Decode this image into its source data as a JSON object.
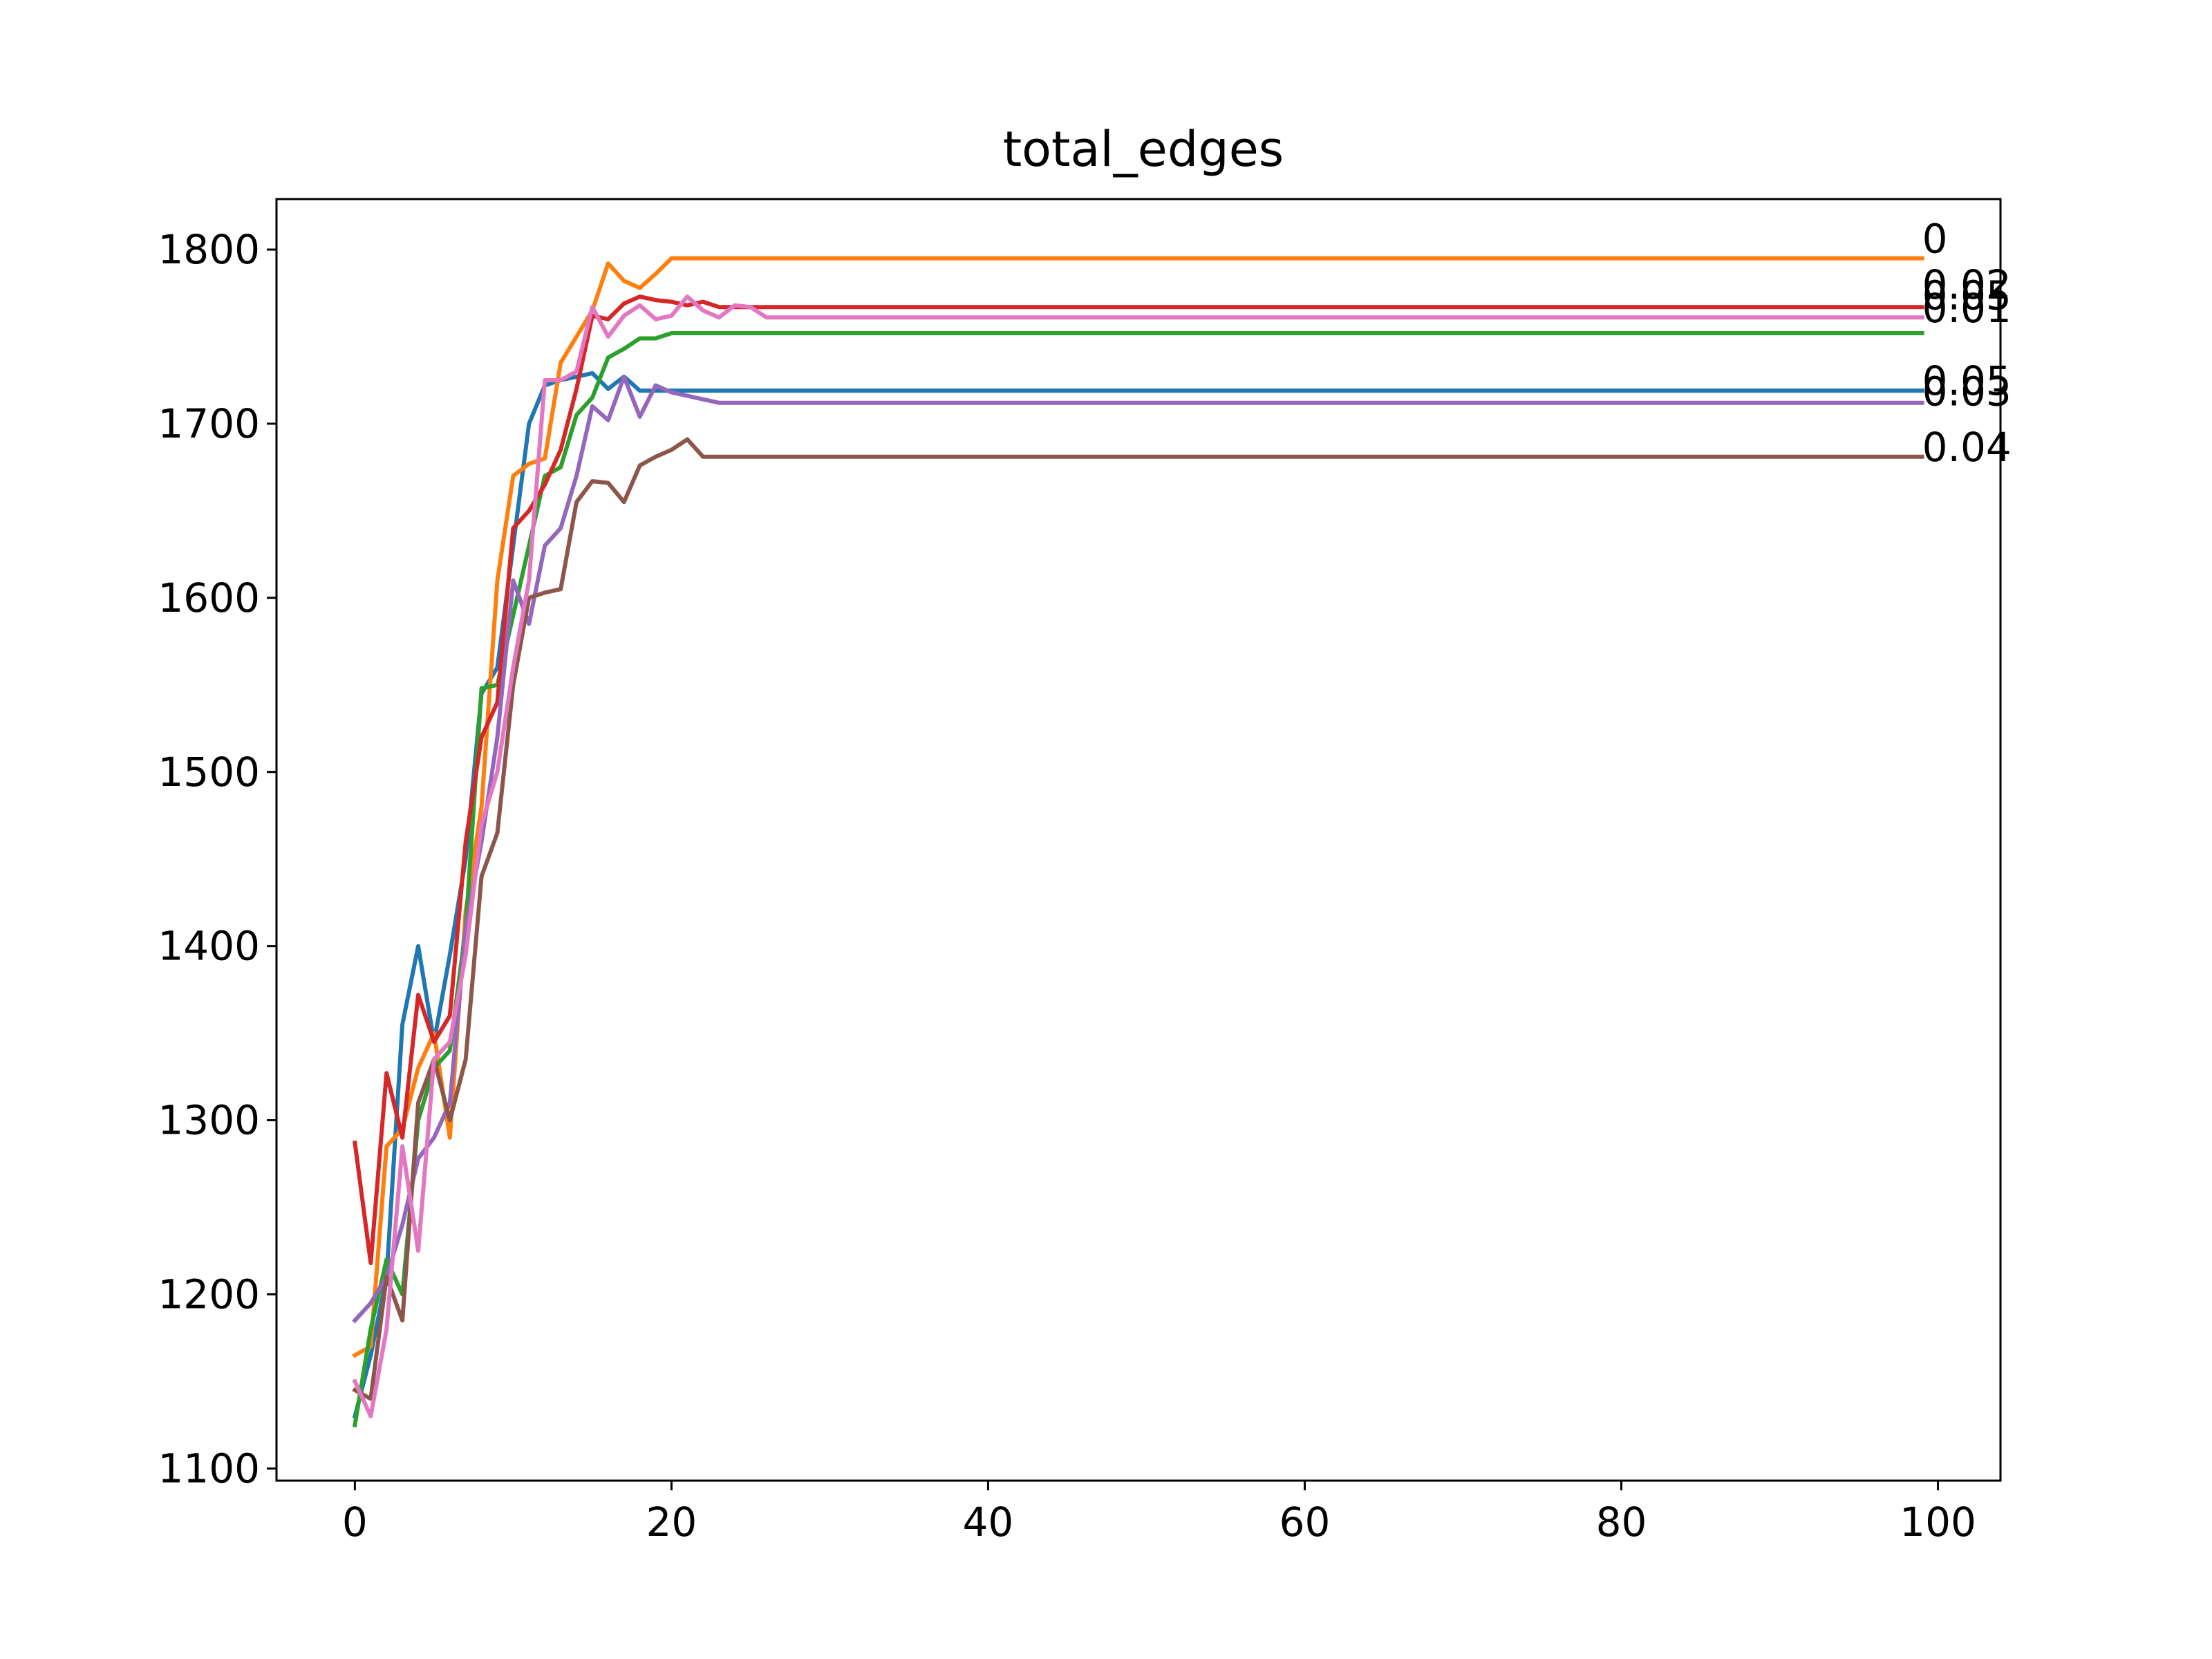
{
  "chart_data": {
    "type": "line",
    "title": "total_edges",
    "xlabel": "",
    "ylabel": "",
    "xlim": [
      -4.95,
      103.95
    ],
    "ylim": [
      1093,
      1829
    ],
    "xticks": [
      0,
      20,
      40,
      60,
      80,
      100
    ],
    "yticks": [
      1100,
      1200,
      1300,
      1400,
      1500,
      1600,
      1700,
      1800
    ],
    "grid": false,
    "legend": "none",
    "series": [
      {
        "name": "0.05",
        "color": "#1f77b4",
        "values": [
          1130,
          1165,
          1210,
          1355,
          1400,
          1345,
          1395,
          1450,
          1545,
          1560,
          1630,
          1700,
          1722,
          1725,
          1727,
          1729,
          1720,
          1727,
          1719,
          1719,
          1719
        ]
      },
      {
        "name": "0",
        "color": "#ff7f0e",
        "values": [
          1165,
          1170,
          1285,
          1295,
          1330,
          1350,
          1290,
          1420,
          1480,
          1610,
          1670,
          1677,
          1680,
          1735,
          1750,
          1765,
          1792,
          1782,
          1778,
          1786,
          1795
        ]
      },
      {
        "name": "0.01",
        "color": "#2ca02c",
        "values": [
          1125,
          1180,
          1220,
          1200,
          1300,
          1330,
          1340,
          1410,
          1548,
          1550,
          1590,
          1630,
          1670,
          1675,
          1705,
          1715,
          1738,
          1743,
          1749,
          1749,
          1752
        ]
      },
      {
        "name": "0.02",
        "color": "#d62728",
        "values": [
          1287,
          1218,
          1327,
          1290,
          1372,
          1345,
          1360,
          1460,
          1520,
          1540,
          1640,
          1650,
          1665,
          1685,
          1720,
          1762,
          1760,
          1769,
          1773,
          1771,
          1770,
          1768,
          1770,
          1767
        ]
      },
      {
        "name": "0.03",
        "color": "#9467bd",
        "values": [
          1185,
          1195,
          1210,
          1240,
          1278,
          1290,
          1310,
          1410,
          1460,
          1520,
          1610,
          1585,
          1630,
          1640,
          1670,
          1710,
          1702,
          1727,
          1704,
          1722,
          1718,
          1716,
          1714,
          1712
        ]
      },
      {
        "name": "0.04",
        "color": "#8c564b",
        "values": [
          1145,
          1140,
          1210,
          1185,
          1310,
          1335,
          1300,
          1335,
          1440,
          1465,
          1550,
          1600,
          1603,
          1605,
          1655,
          1667,
          1666,
          1655,
          1676,
          1681,
          1685,
          1691,
          1681
        ]
      },
      {
        "name": "0.05b",
        "color": "#e377c2",
        "values": [
          1150,
          1130,
          1180,
          1285,
          1225,
          1335,
          1345,
          1395,
          1470,
          1500,
          1560,
          1610,
          1725,
          1725,
          1730,
          1767,
          1750,
          1762,
          1768,
          1760,
          1762,
          1773,
          1765,
          1761,
          1768,
          1767,
          1761
        ]
      }
    ],
    "end_labels": [
      "0",
      "0.02",
      "0.05",
      "0.01",
      "0.05",
      "0.03",
      "0.04"
    ]
  }
}
